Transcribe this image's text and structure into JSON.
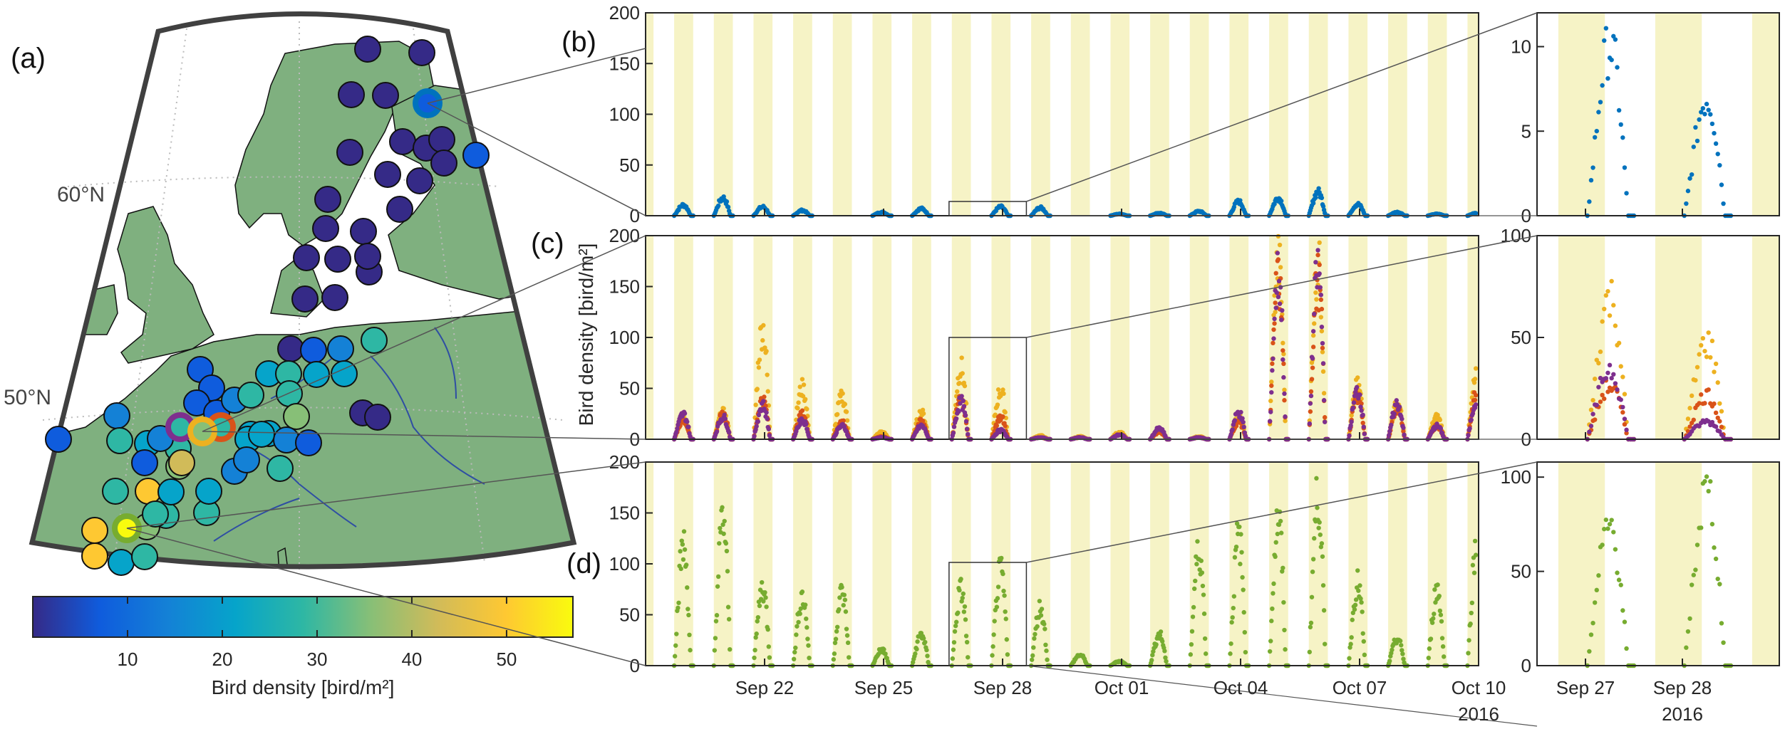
{
  "panel_labels": {
    "a": "(a)",
    "b": "(b)",
    "c": "(c)",
    "d": "(d)"
  },
  "map": {
    "lat_labels": [
      "60°N",
      "50°N"
    ],
    "land_color": "#7fb07f",
    "site_colors_note": "dots coloured by bird density",
    "colorbar": {
      "label": "Bird density [bird/m²]",
      "ticks": [
        "10",
        "20",
        "30",
        "40",
        "50"
      ],
      "range": [
        0,
        57
      ],
      "colormap": [
        "#352a87",
        "#0f5cdd",
        "#1481d6",
        "#06a4ca",
        "#2eb7a4",
        "#87bf77",
        "#d1bb59",
        "#fec832",
        "#f9fb0e"
      ]
    }
  },
  "time_axis": {
    "tick_labels": [
      "Sep 22",
      "Sep 25",
      "Sep 28",
      "Oct 01",
      "Oct 04",
      "Oct 07",
      "Oct 10"
    ],
    "year_label": "2016",
    "start": "2016-09-19",
    "end": "2016-10-10",
    "night_shading": "#f6f3c6"
  },
  "zoom_axis": {
    "tick_labels": [
      "Sep 27",
      "Sep 28"
    ],
    "year_label": "2016"
  },
  "ylabel": "Bird density [bird/m²]",
  "chart_data": [
    {
      "id": "b",
      "type": "scatter",
      "ylim": [
        0,
        200
      ],
      "yticks": [
        0,
        50,
        100,
        150,
        200
      ],
      "series": [
        {
          "color": "#0072bd",
          "nightly_peaks": [
            12,
            20,
            10,
            6,
            0,
            4,
            8,
            0,
            10,
            9,
            0,
            2,
            3,
            5,
            16,
            20,
            27,
            13,
            4,
            2,
            3,
            2
          ]
        }
      ],
      "zoom": {
        "ylim": [
          0,
          12
        ],
        "yticks": [
          0,
          5,
          10
        ],
        "series": [
          {
            "color": "#0072bd",
            "nightly_peaks": [
              11.5,
              8
            ]
          }
        ]
      }
    },
    {
      "id": "c",
      "type": "scatter",
      "ylim": [
        0,
        200
      ],
      "yticks": [
        0,
        50,
        100,
        150,
        200
      ],
      "series": [
        {
          "color": "#edb120",
          "nightly_peaks": [
            25,
            30,
            125,
            58,
            48,
            8,
            30,
            80,
            55,
            4,
            3,
            8,
            10,
            3,
            25,
            200,
            200,
            60,
            40,
            25,
            70,
            30
          ]
        },
        {
          "color": "#d95319",
          "nightly_peaks": [
            22,
            28,
            45,
            28,
            20,
            3,
            20,
            45,
            25,
            2,
            2,
            5,
            8,
            2,
            20,
            180,
            180,
            50,
            35,
            15,
            50,
            25
          ]
        },
        {
          "color": "#7e2f8e",
          "nightly_peaks": [
            28,
            25,
            38,
            22,
            15,
            2,
            15,
            42,
            10,
            2,
            2,
            5,
            12,
            2,
            30,
            185,
            190,
            55,
            40,
            15,
            45,
            25
          ]
        }
      ],
      "zoom": {
        "ylim": [
          0,
          100
        ],
        "yticks": [
          0,
          50,
          100
        ],
        "series": [
          {
            "color": "#edb120",
            "nightly_peaks": [
              80,
              55
            ]
          },
          {
            "color": "#d95319",
            "nightly_peaks": [
              30,
              25
            ]
          },
          {
            "color": "#7e2f8e",
            "nightly_peaks": [
              40,
              10
            ]
          }
        ]
      }
    },
    {
      "id": "d",
      "type": "scatter",
      "ylim": [
        0,
        200
      ],
      "yticks": [
        0,
        50,
        100,
        150,
        200
      ],
      "series": [
        {
          "color": "#77ac30",
          "nightly_peaks": [
            135,
            165,
            88,
            78,
            82,
            18,
            35,
            85,
            105,
            65,
            12,
            5,
            35,
            130,
            145,
            165,
            190,
            92,
            30,
            85,
            135,
            0
          ]
        }
      ],
      "zoom": {
        "ylim": [
          0,
          108
        ],
        "yticks": [
          0,
          50,
          100
        ],
        "series": [
          {
            "color": "#77ac30",
            "nightly_peaks": [
              85,
              105
            ]
          }
        ]
      }
    }
  ]
}
